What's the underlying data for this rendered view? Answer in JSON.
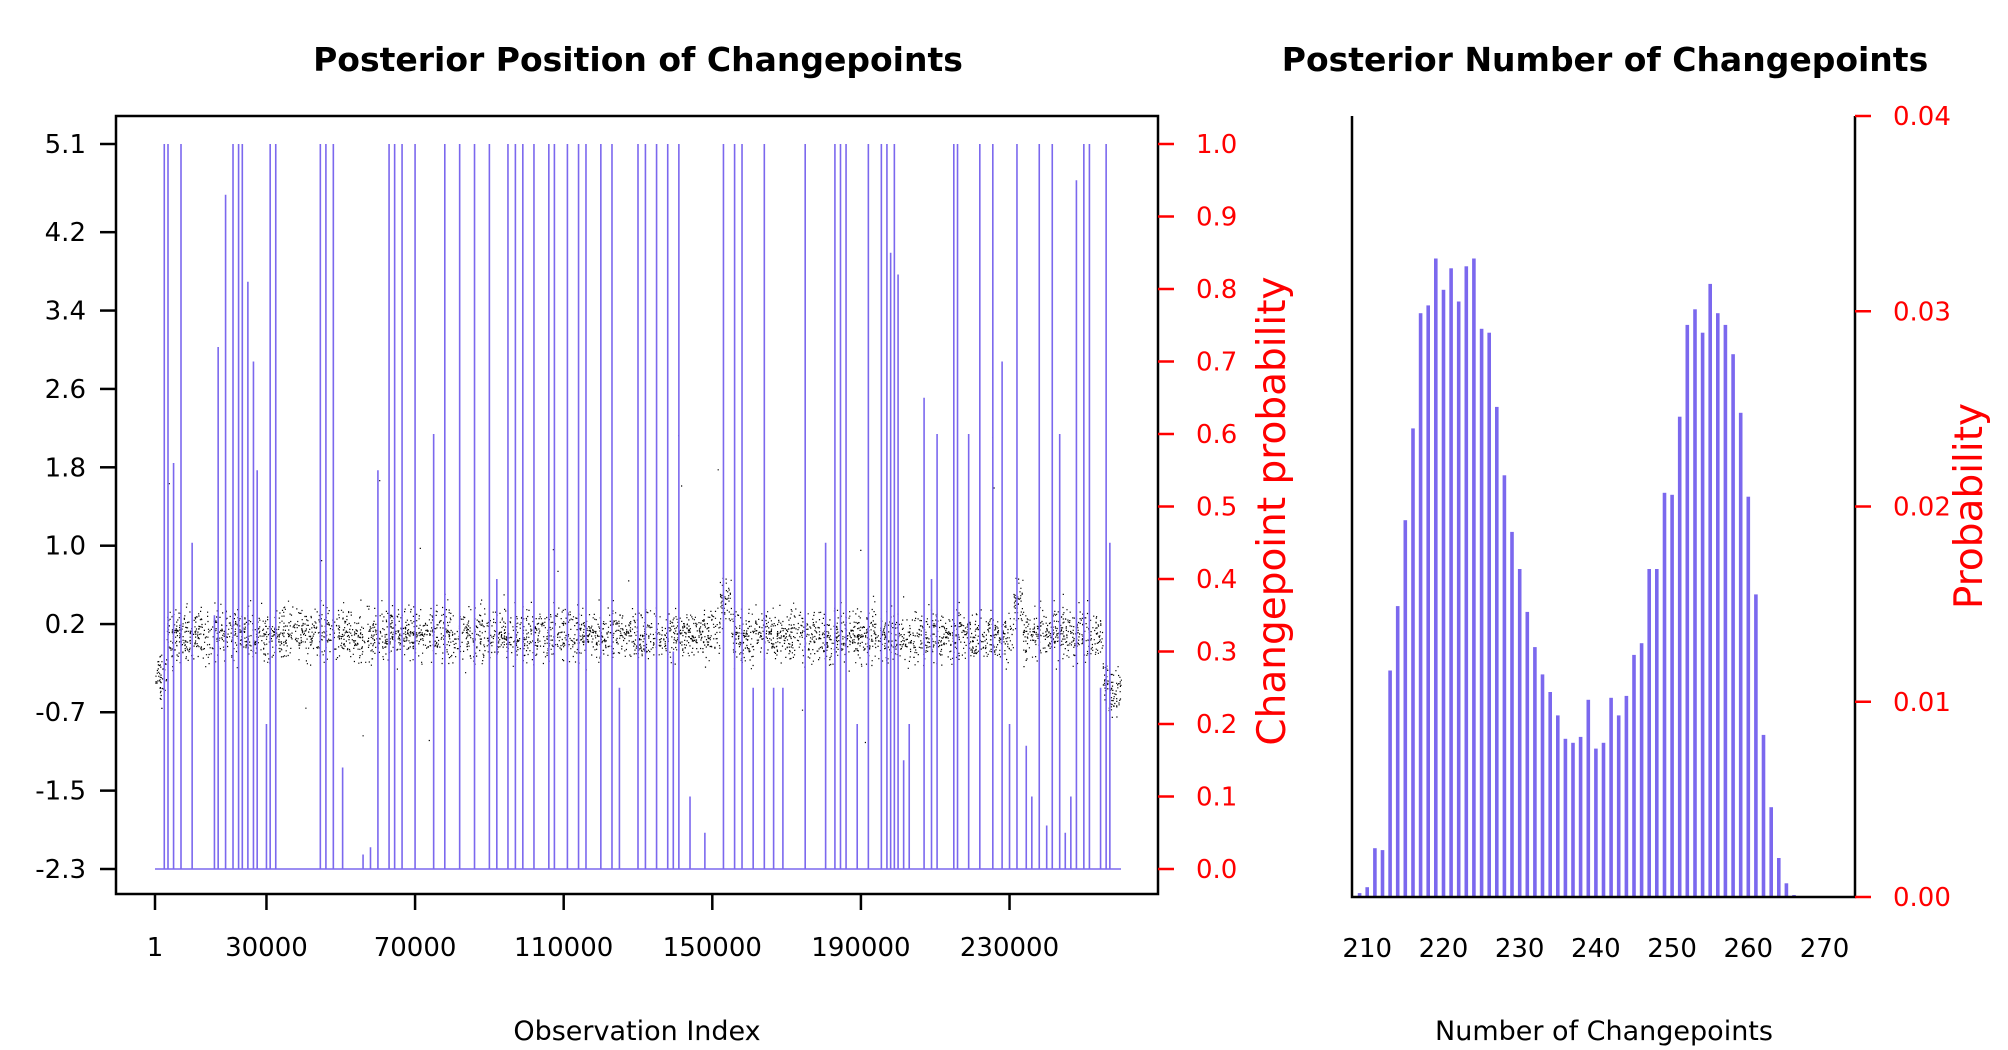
{
  "chart_data": [
    {
      "type": "scatter",
      "title": "Posterior Position of Changepoints",
      "xlabel": "Observation Index",
      "ylabel": "",
      "ylabel_right": "Changepoint probability",
      "xlim": [
        1,
        260000
      ],
      "x_ticks": [
        1,
        30000,
        70000,
        110000,
        150000,
        190000,
        230000
      ],
      "y_ticks": [
        "-2.3",
        "-1.5",
        "-0.7",
        "0.2",
        "1.0",
        "1.8",
        "2.6",
        "3.4",
        "4.2",
        "5.1"
      ],
      "y_tick_values": [
        -2.3,
        -1.5,
        -0.7,
        0.2,
        1.0,
        1.8,
        2.6,
        3.4,
        4.2,
        5.1
      ],
      "ylim": [
        -2.3,
        5.1
      ],
      "y2_ticks": [
        "0.0",
        "0.1",
        "0.2",
        "0.3",
        "0.4",
        "0.5",
        "0.6",
        "0.7",
        "0.8",
        "0.9",
        "1.0"
      ],
      "y2lim": [
        0,
        1
      ],
      "series": [
        {
          "kind": "points",
          "color": "#000000",
          "segments": [
            {
              "x": [
                0,
                3000
              ],
              "center": -0.35,
              "spread": 0.42
            },
            {
              "x": [
                3000,
                152000
              ],
              "center": 0.1,
              "spread": 0.36
            },
            {
              "x": [
                152000,
                155000
              ],
              "center": 0.45,
              "spread": 0.36
            },
            {
              "x": [
                155000,
                231000
              ],
              "center": 0.08,
              "spread": 0.36
            },
            {
              "x": [
                231000,
                233500
              ],
              "center": 0.45,
              "spread": 0.36
            },
            {
              "x": [
                233500,
                255000
              ],
              "center": 0.1,
              "spread": 0.36
            },
            {
              "x": [
                255000,
                260000
              ],
              "center": -0.45,
              "spread": 0.36
            }
          ]
        },
        {
          "kind": "changepoint-probability",
          "color": "#7b68ee",
          "changepoints": [
            [
              2500,
              1.0
            ],
            [
              3500,
              1.0
            ],
            [
              5000,
              0.56
            ],
            [
              7000,
              1.0
            ],
            [
              10000,
              0.45
            ],
            [
              16000,
              0.35
            ],
            [
              17000,
              0.72
            ],
            [
              19000,
              0.93
            ],
            [
              21000,
              1.0
            ],
            [
              22500,
              1.0
            ],
            [
              23500,
              1.0
            ],
            [
              25000,
              0.81
            ],
            [
              26500,
              0.7
            ],
            [
              27500,
              0.55
            ],
            [
              30000,
              0.2
            ],
            [
              31000,
              1.0
            ],
            [
              32500,
              1.0
            ],
            [
              44500,
              1.0
            ],
            [
              46000,
              1.0
            ],
            [
              48000,
              1.0
            ],
            [
              50500,
              0.14
            ],
            [
              56000,
              0.02
            ],
            [
              58000,
              0.03
            ],
            [
              60000,
              0.55
            ],
            [
              63000,
              1.0
            ],
            [
              64500,
              1.0
            ],
            [
              66500,
              1.0
            ],
            [
              70000,
              1.0
            ],
            [
              75000,
              0.6
            ],
            [
              78000,
              1.0
            ],
            [
              82000,
              1.0
            ],
            [
              86000,
              1.0
            ],
            [
              90000,
              1.0
            ],
            [
              92000,
              0.4
            ],
            [
              95000,
              1.0
            ],
            [
              97000,
              1.0
            ],
            [
              99000,
              1.0
            ],
            [
              102000,
              1.0
            ],
            [
              106000,
              1.0
            ],
            [
              107500,
              1.0
            ],
            [
              111000,
              1.0
            ],
            [
              114000,
              1.0
            ],
            [
              116000,
              1.0
            ],
            [
              120000,
              1.0
            ],
            [
              123000,
              1.0
            ],
            [
              125000,
              0.25
            ],
            [
              130000,
              1.0
            ],
            [
              132000,
              1.0
            ],
            [
              135000,
              1.0
            ],
            [
              138000,
              1.0
            ],
            [
              139500,
              0.3
            ],
            [
              141000,
              1.0
            ],
            [
              144000,
              0.1
            ],
            [
              148000,
              0.05
            ],
            [
              153000,
              1.0
            ],
            [
              156000,
              1.0
            ],
            [
              158000,
              1.0
            ],
            [
              161000,
              0.25
            ],
            [
              164000,
              1.0
            ],
            [
              166500,
              0.25
            ],
            [
              169000,
              0.25
            ],
            [
              175000,
              1.0
            ],
            [
              180500,
              0.45
            ],
            [
              183000,
              1.0
            ],
            [
              184500,
              1.0
            ],
            [
              186000,
              1.0
            ],
            [
              189000,
              0.2
            ],
            [
              192000,
              1.0
            ],
            [
              195500,
              1.0
            ],
            [
              197000,
              1.0
            ],
            [
              198000,
              0.85
            ],
            [
              199000,
              1.0
            ],
            [
              200000,
              0.82
            ],
            [
              201500,
              0.15
            ],
            [
              203000,
              0.2
            ],
            [
              207000,
              0.65
            ],
            [
              209000,
              0.4
            ],
            [
              210500,
              0.6
            ],
            [
              215000,
              1.0
            ],
            [
              216000,
              1.0
            ],
            [
              219000,
              0.6
            ],
            [
              222000,
              1.0
            ],
            [
              225500,
              1.0
            ],
            [
              228000,
              0.7
            ],
            [
              230000,
              0.2
            ],
            [
              232000,
              1.0
            ],
            [
              234500,
              0.17
            ],
            [
              236000,
              0.1
            ],
            [
              238000,
              1.0
            ],
            [
              240000,
              0.06
            ],
            [
              241500,
              1.0
            ],
            [
              243500,
              0.6
            ],
            [
              245000,
              0.05
            ],
            [
              246500,
              0.1
            ],
            [
              248000,
              0.95
            ],
            [
              250000,
              1.0
            ],
            [
              251500,
              1.0
            ],
            [
              254500,
              0.25
            ],
            [
              256000,
              1.0
            ],
            [
              257000,
              0.45
            ]
          ]
        }
      ]
    },
    {
      "type": "bar",
      "title": "Posterior Number of Changepoints",
      "xlabel": "Number of Changepoints",
      "ylabel": "",
      "ylabel_right": "Probability",
      "xlim": [
        208,
        274
      ],
      "x_ticks": [
        210,
        220,
        230,
        240,
        250,
        260,
        270
      ],
      "ylim": [
        0,
        0.04
      ],
      "y_ticks": [
        "0.00",
        "0.01",
        "0.02",
        "0.03",
        "0.04"
      ],
      "color": "#7b68ee",
      "x": [
        209,
        210,
        211,
        212,
        213,
        214,
        215,
        216,
        217,
        218,
        219,
        220,
        221,
        222,
        223,
        224,
        225,
        226,
        227,
        228,
        229,
        230,
        231,
        232,
        233,
        234,
        235,
        236,
        237,
        238,
        239,
        240,
        241,
        242,
        243,
        244,
        245,
        246,
        247,
        248,
        249,
        250,
        251,
        252,
        253,
        254,
        255,
        256,
        257,
        258,
        259,
        260,
        261,
        262,
        263,
        264,
        265,
        266
      ],
      "values": [
        0.0002,
        0.0005,
        0.0025,
        0.0024,
        0.0116,
        0.0149,
        0.0193,
        0.024,
        0.0299,
        0.0303,
        0.0327,
        0.0311,
        0.0322,
        0.0305,
        0.0323,
        0.0327,
        0.0291,
        0.0289,
        0.0251,
        0.0216,
        0.0187,
        0.0168,
        0.0146,
        0.0128,
        0.0114,
        0.0105,
        0.0093,
        0.0081,
        0.0079,
        0.0082,
        0.0101,
        0.0076,
        0.0079,
        0.0102,
        0.0093,
        0.0103,
        0.0124,
        0.013,
        0.0168,
        0.0168,
        0.0207,
        0.0206,
        0.0246,
        0.0293,
        0.0301,
        0.0289,
        0.0314,
        0.0299,
        0.0293,
        0.0278,
        0.0248,
        0.0205,
        0.0155,
        0.0083,
        0.0046,
        0.002,
        0.0007,
        0.0001
      ]
    }
  ]
}
